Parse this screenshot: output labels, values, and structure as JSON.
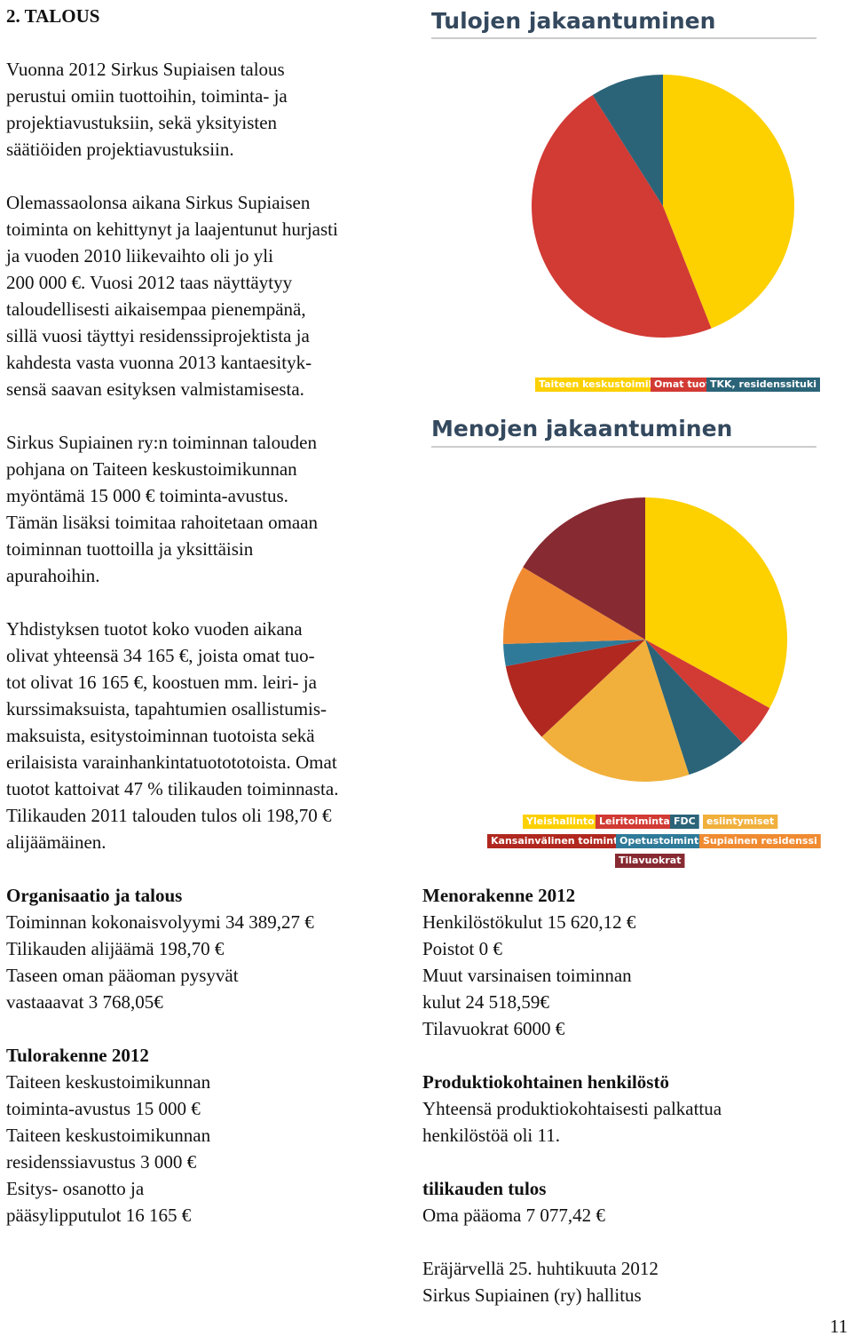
{
  "heading": "2. TALOUS",
  "left_column": [
    {
      "lines": [
        "Vuonna 2012 Sirkus Supiaisen talous",
        "perustui omiin tuottoihin, toiminta- ja",
        "projektiavustuksiin, sekä yksityisten",
        "säätiöiden projektiavustuksiin."
      ]
    },
    {
      "lines": [
        "Olemassaolonsa aikana Sirkus Supiaisen",
        "toiminta on kehittynyt ja laajentunut hurjasti",
        "ja vuoden 2010 liikevaihto oli jo yli",
        "200 000 €. Vuosi 2012 taas näyttäytyy",
        "taloudellisesti aikaisempaa pienempänä,",
        "sillä vuosi täyttyi residenssiprojektista ja",
        "kahdesta vasta vuonna 2013 kantaesityk-",
        "sensä saavan esityksen valmistamisesta."
      ]
    },
    {
      "lines": [
        "Sirkus Supiainen ry:n toiminnan talouden",
        "pohjana on Taiteen keskustoimikunnan",
        "myöntämä 15 000 € toiminta-avustus.",
        "Tämän lisäksi toimitaa rahoitetaan omaan",
        "toiminnan tuottoilla ja yksittäisin",
        "apurahoihin."
      ]
    },
    {
      "lines": [
        "Yhdistyksen tuotot koko vuoden aikana",
        "olivat yhteensä 34 165 €, joista omat tuo-",
        "tot olivat 16 165 €, koostuen mm. leiri- ja",
        "kurssimaksuista, tapahtumien osallistumis-",
        "maksuista, esitystoiminnan tuotoista sekä",
        "erilaisista varainhankintatuotototoista. Omat",
        "tuotot kattoivat 47 % tilikauden toiminnasta.",
        "Tilikauden 2011 talouden tulos oli 198,70 €",
        "alijäämäinen."
      ]
    },
    {
      "title": "Organisaatio ja talous",
      "lines": [
        "Toiminnan kokonaisvolyymi 34 389,27 €",
        "Tilikauden alijäämä 198,70 €",
        "Taseen oman pääoman pysyvät",
        "vastaaavat  3 768,05€"
      ]
    },
    {
      "title": "Tulorakenne 2012",
      "lines": [
        "Taiteen keskustoimikunnan",
        "toiminta-avustus 15 000 €",
        "Taiteen keskustoimikunnan",
        "residenssiavustus 3 000 €",
        "Esitys- osanotto ja",
        "pääsylipputulot 16 165 €"
      ]
    }
  ],
  "right_column": [
    {
      "title": "Menorakenne 2012",
      "lines": [
        "Henkilöstökulut 15  620,12 €",
        "Poistot 0 €",
        "Muut varsinaisen toiminnan",
        "kulut 24 518,59€",
        "Tilavuokrat  6000 €"
      ]
    },
    {
      "title": "Produktiokohtainen henkilöstö",
      "lines": [
        "Yhteensä produktiokohtaisesti palkattua",
        "henkilöstöä oli 11."
      ]
    },
    {
      "title": "tilikauden tulos",
      "lines": [
        "Oma pääoma 7 077,42 €"
      ]
    },
    {
      "lines": [
        "Eräjärvellä 25. huhtikuuta 2012",
        "Sirkus Supiainen (ry) hallitus"
      ]
    }
  ],
  "page_number": "11",
  "chart_data": [
    {
      "type": "pie",
      "title": "Tulojen jakaantuminen",
      "categories": [
        "Taiteen keskustoimikunta",
        "Omat tuotot",
        "TKK, residenssituki"
      ],
      "values": [
        44,
        47,
        9
      ],
      "colors": [
        "#fdd000",
        "#d23a34",
        "#2b6478"
      ]
    },
    {
      "type": "pie",
      "title": "Menojen jakaantuminen",
      "categories": [
        "Yleishallinto",
        "Leiritoiminta",
        "FDC",
        "esiintymiset",
        "Kansainvälinen toiminta",
        "Opetustoiminta",
        "Supiainen residenssi",
        "Tilavuokrat"
      ],
      "values": [
        33,
        5,
        7,
        18,
        9,
        2.5,
        9,
        16.5
      ],
      "colors": [
        "#fdd000",
        "#d23a34",
        "#2b6478",
        "#f1b03c",
        "#b0281f",
        "#2f7a99",
        "#f08b32",
        "#872a31"
      ]
    }
  ]
}
